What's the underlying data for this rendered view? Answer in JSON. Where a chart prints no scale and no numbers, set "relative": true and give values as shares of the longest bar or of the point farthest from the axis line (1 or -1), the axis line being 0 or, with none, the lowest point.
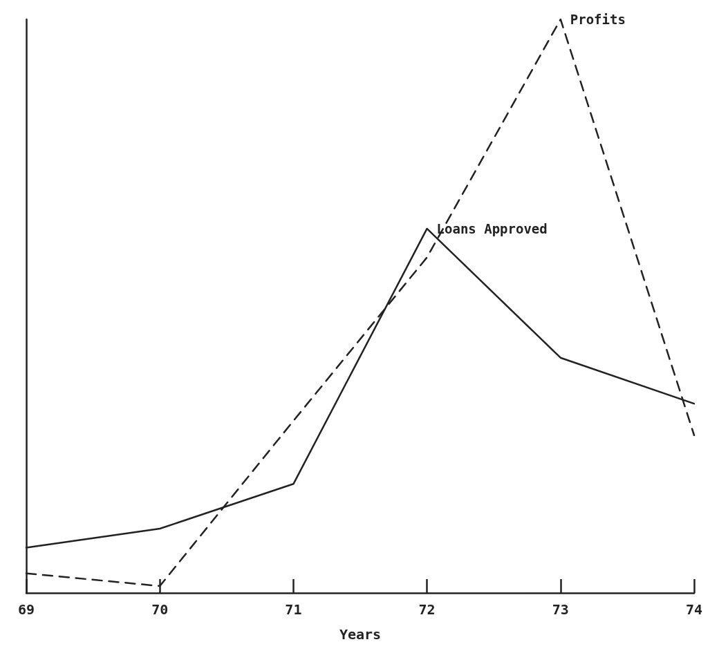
{
  "chart_data": {
    "type": "line",
    "xlabel": "Years",
    "x": [
      69,
      70,
      71,
      72,
      73,
      74
    ],
    "xlim": [
      69,
      74
    ],
    "xticks": [
      69,
      70,
      71,
      72,
      73,
      74
    ],
    "relative": true,
    "grid": false,
    "legend": false,
    "marker": "none",
    "series": [
      {
        "name": "Loans Approved",
        "color": "#222222",
        "line_style": "solid",
        "values": [
          0.079,
          0.112,
          0.19,
          0.635,
          0.41,
          0.33
        ]
      },
      {
        "name": "Profits",
        "color": "#222222",
        "line_style": "dashed",
        "values": [
          0.034,
          0.012,
          0.3,
          0.585,
          1.0,
          0.275
        ]
      }
    ]
  }
}
